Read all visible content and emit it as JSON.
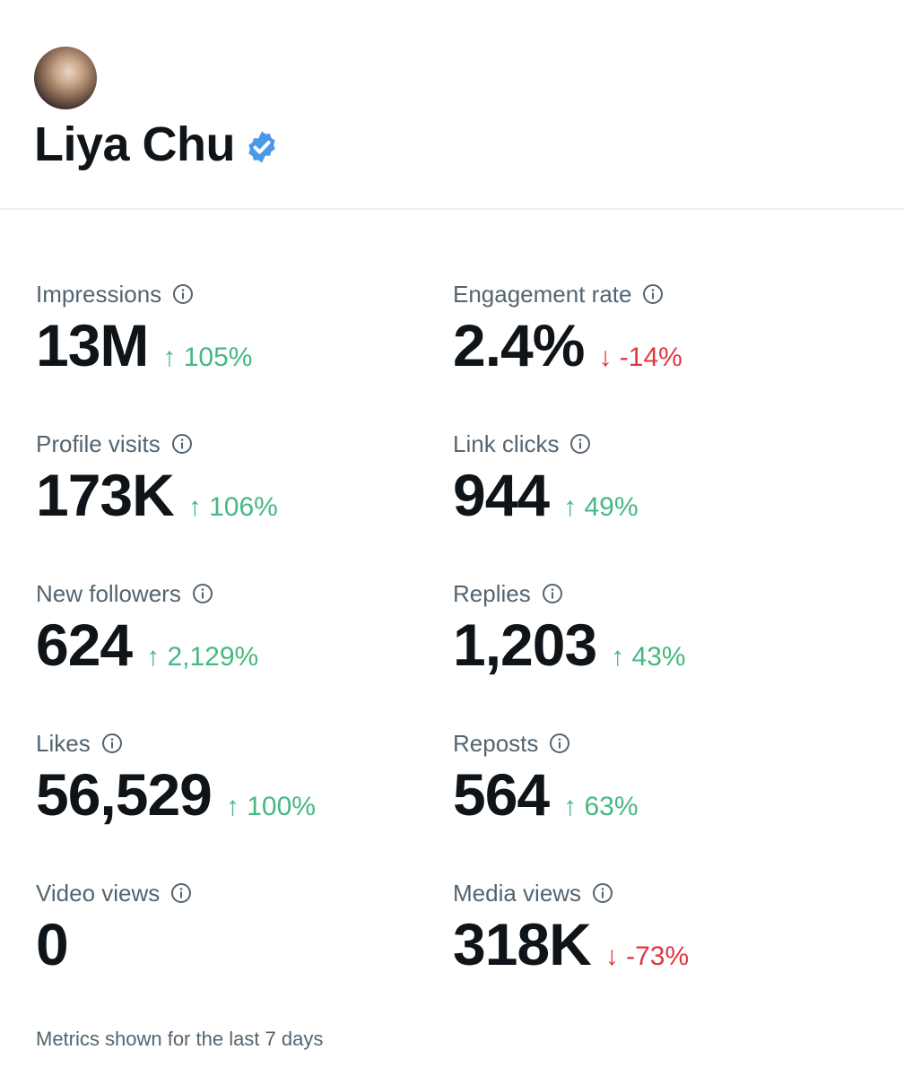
{
  "profile": {
    "name": "Liya Chu",
    "verified": true,
    "avatar_icon": "user-avatar-photo"
  },
  "colors": {
    "up": "#47b881",
    "down": "#e0383e",
    "verified": "#4a99e9",
    "label": "#536471"
  },
  "metrics": [
    {
      "label": "Impressions",
      "value": "13M",
      "change": "105%",
      "direction": "up"
    },
    {
      "label": "Engagement rate",
      "value": "2.4%",
      "change": "-14%",
      "direction": "down"
    },
    {
      "label": "Profile visits",
      "value": "173K",
      "change": "106%",
      "direction": "up"
    },
    {
      "label": "Link clicks",
      "value": "944",
      "change": "49%",
      "direction": "up"
    },
    {
      "label": "New followers",
      "value": "624",
      "change": "2,129%",
      "direction": "up"
    },
    {
      "label": "Replies",
      "value": "1,203",
      "change": "43%",
      "direction": "up"
    },
    {
      "label": "Likes",
      "value": "56,529",
      "change": "100%",
      "direction": "up"
    },
    {
      "label": "Reposts",
      "value": "564",
      "change": "63%",
      "direction": "up"
    },
    {
      "label": "Video views",
      "value": "0",
      "change": "",
      "direction": "none"
    },
    {
      "label": "Media views",
      "value": "318K",
      "change": "-73%",
      "direction": "down"
    }
  ],
  "footer": "Metrics shown for the last 7 days"
}
